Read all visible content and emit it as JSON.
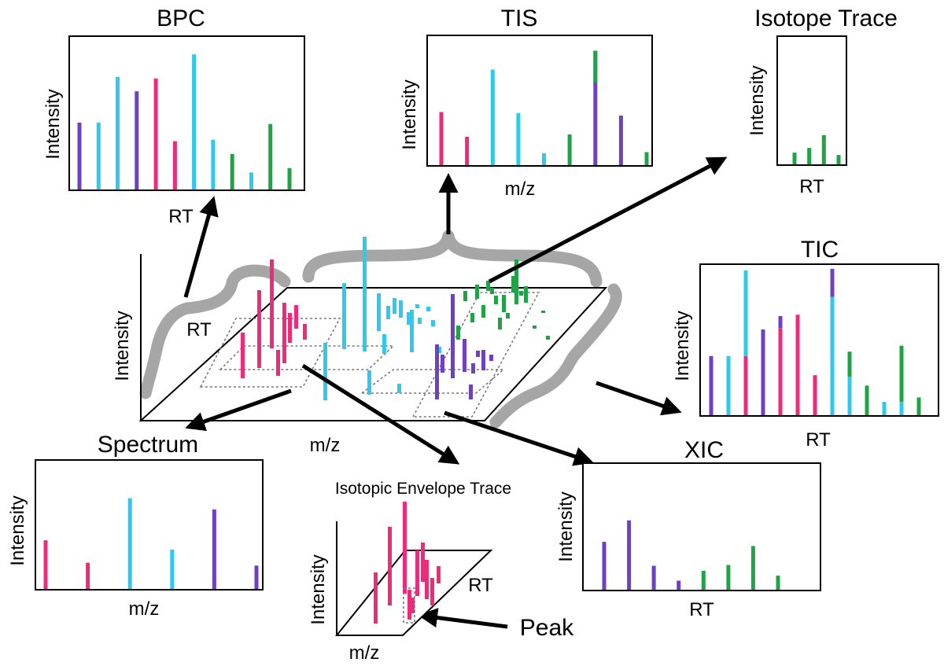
{
  "colors": {
    "pink": "#ee2a7b",
    "cyan": "#2fc9f0",
    "purple": "#6f3fc4",
    "green": "#1fa346",
    "brace": "#a6a6a6"
  },
  "center": {
    "ylabel": "Intensity",
    "xlabel": "m/z",
    "rt_label": "RT"
  },
  "panels": {
    "bpc": {
      "title": "BPC",
      "ylabel": "Intensity",
      "xlabel": "RT"
    },
    "tis": {
      "title": "TIS",
      "ylabel": "Intensity",
      "xlabel": "m/z"
    },
    "isotope": {
      "title": "Isotope Trace",
      "ylabel": "Intensity",
      "xlabel": "RT"
    },
    "tic": {
      "title": "TIC",
      "ylabel": "Intensity",
      "xlabel": "RT"
    },
    "spectrum": {
      "title": "Spectrum",
      "ylabel": "Intensity",
      "xlabel": "m/z"
    },
    "envelope": {
      "title": "Isotopic Envelope Trace",
      "ylabel": "Intensity",
      "xlabel": "m/z",
      "rt_label": "RT",
      "peak_label": "Peak"
    },
    "xic": {
      "title": "XIC",
      "ylabel": "Intensity",
      "xlabel": "RT"
    }
  },
  "chart_data": [
    {
      "type": "bar",
      "panel": "bpc",
      "title": "BPC",
      "xlabel": "RT",
      "ylabel": "Intensity",
      "ylim": [
        0,
        1
      ],
      "values": [
        0.47,
        0.47,
        0.79,
        0.69,
        0.78,
        0.34,
        0.95,
        0.35,
        0.25,
        0.12,
        0.46,
        0.15
      ],
      "colors": [
        "purple",
        "cyan",
        "cyan",
        "purple",
        "pink",
        "pink",
        "cyan",
        "cyan",
        "green",
        "cyan",
        "green",
        "green"
      ]
    },
    {
      "type": "bar",
      "panel": "tis",
      "title": "TIS",
      "xlabel": "m/z",
      "ylabel": "Intensity",
      "ylim": [
        0,
        1
      ],
      "values": [
        0.45,
        0.24,
        0.81,
        0.44,
        0.1,
        0.26,
        0.97,
        0.42,
        0.11
      ],
      "colors": [
        "pink",
        "pink",
        "cyan",
        "cyan",
        "cyan",
        "green",
        "purple",
        "purple",
        "green"
      ],
      "stacked_top": [
        null,
        null,
        null,
        null,
        null,
        null,
        {
          "color": "green",
          "value": 0.27
        },
        null,
        null
      ]
    },
    {
      "type": "bar",
      "panel": "isotope",
      "title": "Isotope Trace",
      "xlabel": "RT",
      "ylabel": "Intensity",
      "ylim": [
        0,
        1
      ],
      "values": [
        0.1,
        0.14,
        0.25,
        0.08
      ],
      "colors": [
        "green",
        "green",
        "green",
        "green"
      ]
    },
    {
      "type": "bar",
      "panel": "tic",
      "title": "TIC",
      "xlabel": "RT",
      "ylabel": "Intensity",
      "ylim": [
        0,
        1
      ],
      "segments": [
        [
          {
            "color": "purple",
            "value": 0.4
          }
        ],
        [
          {
            "color": "cyan",
            "value": 0.4
          }
        ],
        [
          {
            "color": "pink",
            "value": 0.4
          },
          {
            "color": "cyan",
            "value": 0.58
          }
        ],
        [
          {
            "color": "purple",
            "value": 0.58
          }
        ],
        [
          {
            "color": "pink",
            "value": 0.59
          },
          {
            "color": "purple",
            "value": 0.08
          }
        ],
        [
          {
            "color": "pink",
            "value": 0.68
          }
        ],
        [
          {
            "color": "pink",
            "value": 0.27
          }
        ],
        [
          {
            "color": "cyan",
            "value": 0.8
          },
          {
            "color": "purple",
            "value": 0.19
          }
        ],
        [
          {
            "color": "cyan",
            "value": 0.26
          },
          {
            "color": "green",
            "value": 0.17
          }
        ],
        [
          {
            "color": "green",
            "value": 0.2
          }
        ],
        [
          {
            "color": "cyan",
            "value": 0.09
          }
        ],
        [
          {
            "color": "cyan",
            "value": 0.09
          },
          {
            "color": "green",
            "value": 0.38
          }
        ],
        [
          {
            "color": "green",
            "value": 0.12
          }
        ]
      ]
    },
    {
      "type": "bar",
      "panel": "spectrum",
      "title": "Spectrum",
      "xlabel": "m/z",
      "ylabel": "Intensity",
      "ylim": [
        0,
        1
      ],
      "values": [
        0.52,
        0.28,
        0.97,
        0.42,
        0.85,
        0.25
      ],
      "colors": [
        "pink",
        "pink",
        "cyan",
        "cyan",
        "purple",
        "purple"
      ]
    },
    {
      "type": "bar",
      "panel": "xic",
      "title": "XIC",
      "xlabel": "RT",
      "ylabel": "Intensity",
      "ylim": [
        0,
        1
      ],
      "values": [
        0.58,
        0.84,
        0.29,
        0.11,
        0.23,
        0.3,
        0.53,
        0.17
      ],
      "colors": [
        "purple",
        "purple",
        "purple",
        "purple",
        "green",
        "green",
        "green",
        "green"
      ]
    }
  ]
}
